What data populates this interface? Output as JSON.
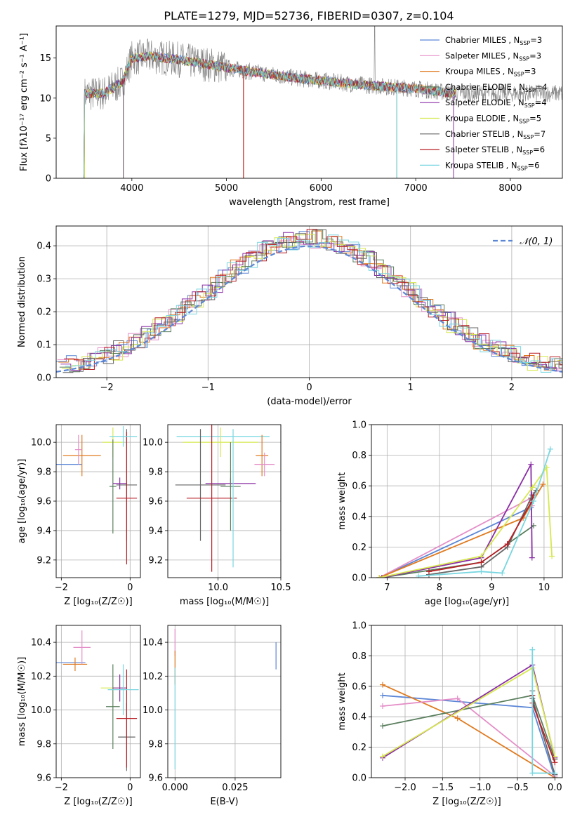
{
  "figure": {
    "title": "PLATE=1279, MJD=52736, FIBERID=0307, z=0.104"
  },
  "series_colors": {
    "Chabrier MILES": "#5b86d6",
    "Salpeter MILES": "#e48ec7",
    "Kroupa MILES": "#e07a1f",
    "Chabrier ELODIE": "#5a7f5e",
    "Salpeter ELODIE": "#8a2ea6",
    "Kroupa ELODIE": "#d6e84f",
    "Chabrier STELIB": "#666666",
    "Salpeter STELIB": "#b81f26",
    "Kroupa STELIB": "#78d6e0"
  },
  "chart_data": [
    {
      "type": "line",
      "id": "spectrum",
      "title": "PLATE=1279, MJD=52736, FIBERID=0307, z=0.104",
      "xlabel": "wavelength [Angstrom, rest frame]",
      "ylabel": "Flux [fλ10⁻¹⁷ erg cm⁻² s⁻¹ A⁻¹]",
      "xlim": [
        3200,
        8550
      ],
      "ylim": [
        0,
        19
      ],
      "xticks": [
        "4000",
        "5000",
        "6000",
        "7000",
        "8000"
      ],
      "yticks": [
        "0",
        "5",
        "10",
        "15"
      ],
      "legend_position": "top-right",
      "legend": [
        {
          "name": "Chabrier MILES",
          "nssp": "3"
        },
        {
          "name": "Salpeter MILES",
          "nssp": "3"
        },
        {
          "name": "Kroupa MILES",
          "nssp": "3"
        },
        {
          "name": "Chabrier ELODIE",
          "nssp": "4"
        },
        {
          "name": "Salpeter ELODIE",
          "nssp": "4"
        },
        {
          "name": "Kroupa ELODIE",
          "nssp": "5"
        },
        {
          "name": "Chabrier STELIB",
          "nssp": "7"
        },
        {
          "name": "Salpeter STELIB",
          "nssp": "6"
        },
        {
          "name": "Kroupa STELIB",
          "nssp": "6"
        }
      ],
      "continuum": {
        "x": [
          3500,
          3700,
          3900,
          4000,
          4200,
          4500,
          4800,
          5000,
          5200,
          5500,
          5800,
          6000,
          6300,
          6600,
          7000,
          7400
        ],
        "y": [
          10.5,
          10.6,
          12.0,
          15.0,
          15.2,
          14.8,
          14.2,
          13.8,
          13.4,
          12.9,
          12.4,
          12.2,
          11.8,
          11.5,
          11.2,
          10.6
        ]
      }
    },
    {
      "type": "line",
      "id": "residual_histogram",
      "xlabel": "(data-model)/error",
      "ylabel": "Normed distribution",
      "xlim": [
        -2.5,
        2.5
      ],
      "ylim": [
        0,
        0.46
      ],
      "xticks": [
        "−2",
        "−1",
        "0",
        "1",
        "2"
      ],
      "yticks": [
        "0.0",
        "0.1",
        "0.2",
        "0.3",
        "0.4"
      ],
      "legend_position": "top-right",
      "legend": [
        "𝒩(0, 1)"
      ],
      "reference": {
        "name": "𝒩(0, 1)",
        "mu": 0,
        "sigma": 1
      }
    },
    {
      "type": "scatter",
      "id": "age_vs_Z",
      "xlabel": "Z [log₁₀(Z/Z☉)]",
      "ylabel": "age  [log₁₀(age/yr)]",
      "xlim": [
        -2.15,
        0.3
      ],
      "ylim": [
        9.08,
        10.12
      ],
      "xticks": [
        "−2",
        "0"
      ],
      "yticks": [
        "9.2",
        "9.4",
        "9.6",
        "9.8",
        "10.0"
      ],
      "points": [
        {
          "c": "Chabrier MILES",
          "x": -1.85,
          "y": 9.85,
          "xe": 0.45,
          "ye": 0.0
        },
        {
          "c": "Kroupa MILES",
          "x": -1.4,
          "y": 9.91,
          "xe": 0.55,
          "ye": 0.14
        },
        {
          "c": "Salpeter MILES",
          "x": -1.5,
          "y": 9.95,
          "xe": 0.1,
          "ye": 0.1
        },
        {
          "c": "Kroupa ELODIE",
          "x": -0.5,
          "y": 10.0,
          "xe": 0.3,
          "ye": 0.1
        },
        {
          "c": "Chabrier ELODIE",
          "x": -0.5,
          "y": 9.7,
          "xe": 0.1,
          "ye": 0.32
        },
        {
          "c": "Salpeter ELODIE",
          "x": -0.3,
          "y": 9.72,
          "xe": 0.2,
          "ye": 0.04
        },
        {
          "c": "Chabrier STELIB",
          "x": -0.1,
          "y": 9.71,
          "xe": 0.3,
          "ye": 0.38
        },
        {
          "c": "Salpeter STELIB",
          "x": -0.1,
          "y": 9.62,
          "xe": 0.3,
          "ye": 0.45
        },
        {
          "c": "Kroupa STELIB",
          "x": -0.2,
          "y": 10.04,
          "xe": 0.4,
          "ye": 0.07
        }
      ]
    },
    {
      "type": "scatter",
      "id": "age_vs_mass",
      "xlabel": "mass [log₁₀(M/M☉)]",
      "ylabel": "",
      "xlim": [
        9.6,
        10.5
      ],
      "ylim": [
        9.08,
        10.12
      ],
      "xticks": [
        "10.0",
        "10.5"
      ],
      "yticks": [
        "9.2",
        "9.4",
        "9.6",
        "9.8",
        "10.0"
      ],
      "points": [
        {
          "c": "Kroupa STELIB",
          "x": 10.04,
          "y": 10.04,
          "xe": 0.37,
          "ye": 0.0
        },
        {
          "c": "Kroupa ELODIE",
          "x": 10.02,
          "y": 10.0,
          "xe": 0.3,
          "ye": 0.1
        },
        {
          "c": "Chabrier STELIB",
          "x": 9.86,
          "y": 9.71,
          "xe": 0.2,
          "ye": 0.38
        },
        {
          "c": "Salpeter ELODIE",
          "x": 10.1,
          "y": 9.72,
          "xe": 0.2,
          "ye": 0.04
        },
        {
          "c": "Chabrier ELODIE",
          "x": 10.1,
          "y": 9.7,
          "xe": 0.08,
          "ye": 0.3
        },
        {
          "c": "Salpeter STELIB",
          "x": 9.95,
          "y": 9.62,
          "xe": 0.2,
          "ye": 0.5
        },
        {
          "c": "Kroupa MILES",
          "x": 10.35,
          "y": 9.91,
          "xe": 0.05,
          "ye": 0.14
        },
        {
          "c": "Salpeter MILES",
          "x": 10.37,
          "y": 9.85,
          "xe": 0.08,
          "ye": 0.08
        },
        {
          "c": "Kroupa STELIB",
          "x": 10.12,
          "y": 9.62,
          "xe": 0.01,
          "ye": 0.47
        }
      ]
    },
    {
      "type": "line",
      "id": "mass_weight_vs_age",
      "xlabel": "age  [log₁₀(age/yr)]",
      "ylabel": "mass weight",
      "xlim": [
        6.7,
        10.35
      ],
      "ylim": [
        0,
        1
      ],
      "xticks": [
        "7",
        "8",
        "9",
        "10"
      ],
      "yticks": [
        "0.0",
        "0.2",
        "0.4",
        "0.6",
        "0.8",
        "1.0"
      ],
      "series": [
        {
          "name": "Chabrier MILES",
          "x": [
            6.85,
            9.75,
            9.77
          ],
          "y": [
            0.0,
            0.46,
            0.54
          ]
        },
        {
          "name": "Salpeter MILES",
          "x": [
            6.85,
            9.75,
            9.77
          ],
          "y": [
            0.0,
            0.52,
            0.47
          ]
        },
        {
          "name": "Kroupa MILES",
          "x": [
            6.85,
            9.6,
            9.98
          ],
          "y": [
            0.0,
            0.39,
            0.61
          ]
        },
        {
          "name": "Chabrier ELODIE",
          "x": [
            6.9,
            8.8,
            9.3,
            9.8
          ],
          "y": [
            0.0,
            0.1,
            0.22,
            0.34
          ]
        },
        {
          "name": "Salpeter ELODIE",
          "x": [
            6.9,
            8.8,
            9.75,
            9.77
          ],
          "y": [
            0.0,
            0.13,
            0.74,
            0.13
          ]
        },
        {
          "name": "Kroupa ELODIE",
          "x": [
            6.85,
            8.8,
            9.78,
            10.05,
            10.15
          ],
          "y": [
            0.0,
            0.14,
            0.59,
            0.72,
            0.14
          ]
        },
        {
          "name": "Chabrier STELIB",
          "x": [
            7.8,
            8.8,
            9.3,
            9.75,
            9.85
          ],
          "y": [
            0.02,
            0.07,
            0.2,
            0.52,
            0.57
          ]
        },
        {
          "name": "Salpeter STELIB",
          "x": [
            7.8,
            8.8,
            9.3,
            9.75,
            9.8
          ],
          "y": [
            0.04,
            0.1,
            0.22,
            0.49,
            0.54
          ]
        },
        {
          "name": "Kroupa STELIB",
          "x": [
            7.6,
            8.8,
            9.2,
            9.8,
            10.12
          ],
          "y": [
            0.01,
            0.04,
            0.03,
            0.5,
            0.84
          ]
        }
      ]
    },
    {
      "type": "scatter",
      "id": "mass_vs_Z",
      "xlabel": "Z [log₁₀(Z/Z☉)]",
      "ylabel": "mass [log₁₀(M/M☉)]",
      "xlim": [
        -2.15,
        0.3
      ],
      "ylim": [
        9.6,
        10.5
      ],
      "xticks": [
        "−2",
        "0"
      ],
      "yticks": [
        "9.6",
        "9.8",
        "10.0",
        "10.2",
        "10.4"
      ],
      "points": [
        {
          "c": "Chabrier MILES",
          "x": -1.8,
          "y": 10.28,
          "xe": 0.5,
          "ye": 0.0
        },
        {
          "c": "Kroupa MILES",
          "x": -1.6,
          "y": 10.27,
          "xe": 0.35,
          "ye": 0.04
        },
        {
          "c": "Salpeter MILES",
          "x": -1.4,
          "y": 10.37,
          "xe": 0.25,
          "ye": 0.1
        },
        {
          "c": "Kroupa ELODIE",
          "x": -0.5,
          "y": 10.13,
          "xe": 0.35,
          "ye": 0.0
        },
        {
          "c": "Chabrier ELODIE",
          "x": -0.5,
          "y": 10.02,
          "xe": 0.2,
          "ye": 0.25
        },
        {
          "c": "Salpeter ELODIE",
          "x": -0.3,
          "y": 10.13,
          "xe": 0.2,
          "ye": 0.08
        },
        {
          "c": "Chabrier STELIB",
          "x": -0.1,
          "y": 9.84,
          "xe": 0.25,
          "ye": 0.2
        },
        {
          "c": "Salpeter STELIB",
          "x": -0.1,
          "y": 9.95,
          "xe": 0.3,
          "ye": 0.29
        },
        {
          "c": "Kroupa STELIB",
          "x": -0.2,
          "y": 10.12,
          "xe": 0.45,
          "ye": 0.15
        }
      ]
    },
    {
      "type": "scatter",
      "id": "mass_vs_ebv",
      "xlabel": "E(B-V)",
      "ylabel": "",
      "xlim": [
        -0.003,
        0.044
      ],
      "ylim": [
        9.6,
        10.5
      ],
      "xticks": [
        "0.000",
        "0.025"
      ],
      "yticks": [
        "9.6",
        "9.8",
        "10.0",
        "10.2",
        "10.4"
      ],
      "points": [
        {
          "c": "Salpeter MILES",
          "x": 0.0,
          "y": 10.4,
          "xe": 0.0,
          "ye": 0.08
        },
        {
          "c": "Kroupa MILES",
          "x": 0.0,
          "y": 10.25,
          "xe": 0.0,
          "ye": 0.1
        },
        {
          "c": "Kroupa STELIB",
          "x": 0.0,
          "y": 9.95,
          "xe": 0.0,
          "ye": 0.3
        },
        {
          "c": "Chabrier MILES",
          "x": 0.042,
          "y": 10.32,
          "xe": 0.0,
          "ye": 0.08
        }
      ]
    },
    {
      "type": "line",
      "id": "mass_weight_vs_Z",
      "xlabel": "Z [log₁₀(Z/Z☉)]",
      "ylabel": "mass weight",
      "xlim": [
        -2.45,
        0.1
      ],
      "ylim": [
        0,
        1
      ],
      "xticks": [
        "−2.0",
        "−1.5",
        "−1.0",
        "−0.5",
        "0.0"
      ],
      "yticks": [
        "0.0",
        "0.2",
        "0.4",
        "0.6",
        "0.8",
        "1.0"
      ],
      "series": [
        {
          "name": "Chabrier MILES",
          "x": [
            -2.3,
            -0.3,
            0.0
          ],
          "y": [
            0.54,
            0.46,
            0.0
          ]
        },
        {
          "name": "Kroupa MILES",
          "x": [
            -2.3,
            -1.3,
            0.0
          ],
          "y": [
            0.61,
            0.39,
            0.0
          ]
        },
        {
          "name": "Salpeter MILES",
          "x": [
            -2.3,
            -1.3,
            0.0
          ],
          "y": [
            0.47,
            0.52,
            0.01
          ]
        },
        {
          "name": "Chabrier ELODIE",
          "x": [
            -2.3,
            -0.3,
            0.0
          ],
          "y": [
            0.34,
            0.54,
            0.12
          ]
        },
        {
          "name": "Salpeter ELODIE",
          "x": [
            -2.3,
            -0.3,
            0.0
          ],
          "y": [
            0.13,
            0.74,
            0.13
          ]
        },
        {
          "name": "Kroupa ELODIE",
          "x": [
            -2.3,
            -0.3,
            0.0
          ],
          "y": [
            0.14,
            0.72,
            0.14
          ]
        },
        {
          "name": "Chabrier STELIB",
          "x": [
            -0.3,
            -0.3,
            0.0
          ],
          "y": [
            0.57,
            0.52,
            0.02
          ]
        },
        {
          "name": "Salpeter STELIB",
          "x": [
            -0.3,
            -0.3,
            0.0
          ],
          "y": [
            0.54,
            0.49,
            0.1
          ]
        },
        {
          "name": "Kroupa STELIB",
          "x": [
            -0.3,
            -0.3,
            0.0
          ],
          "y": [
            0.84,
            0.03,
            0.03
          ]
        }
      ]
    }
  ]
}
